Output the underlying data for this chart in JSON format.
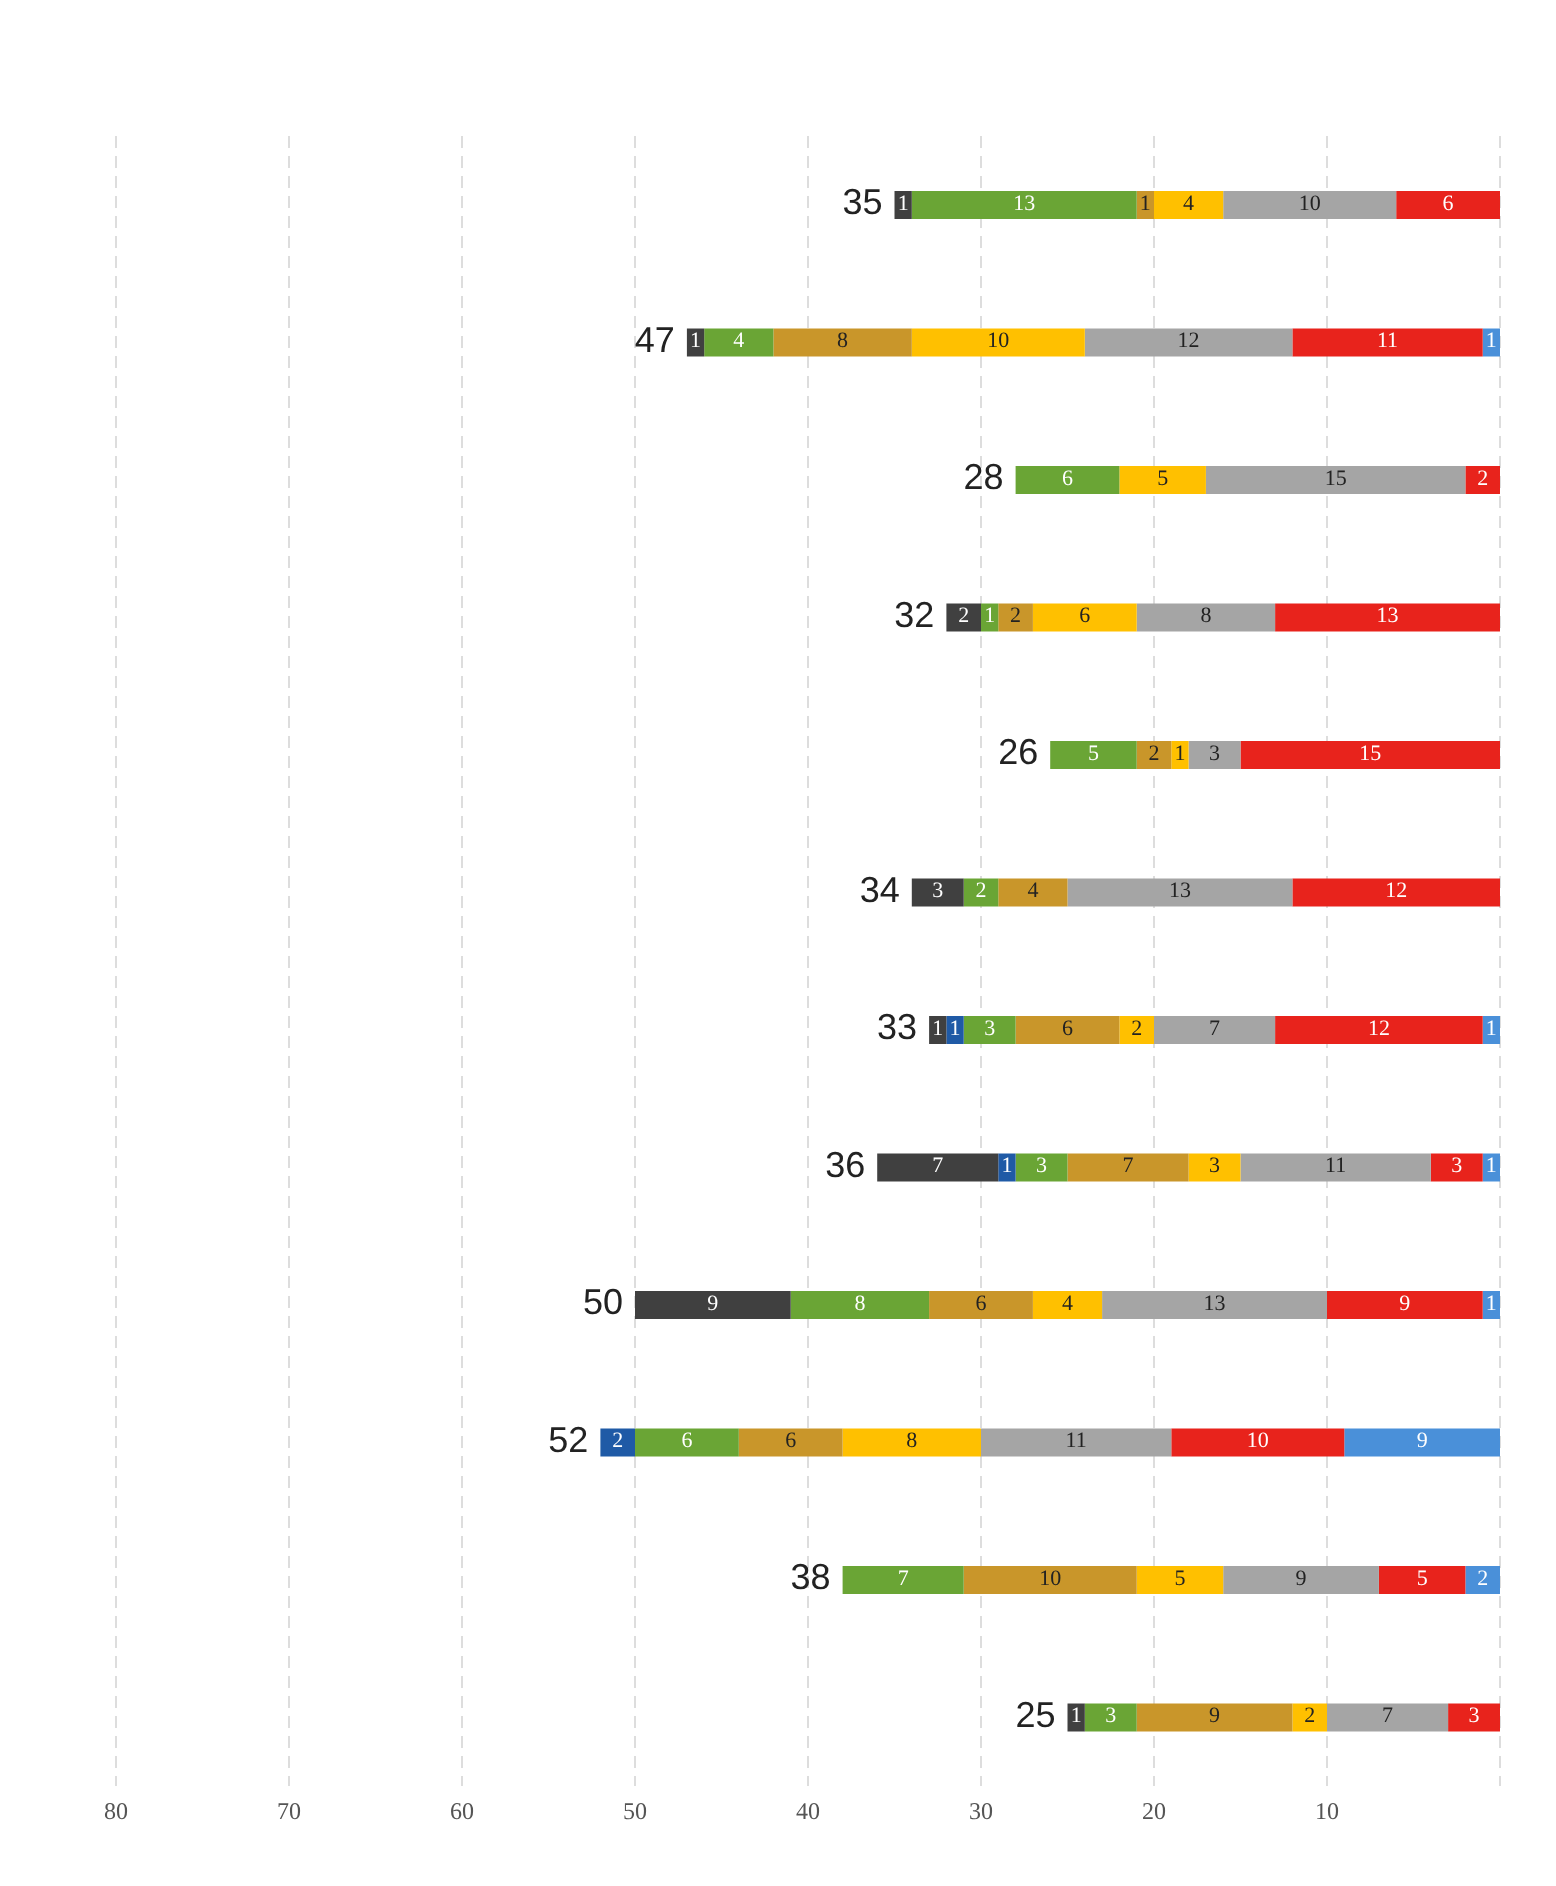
{
  "chart_data": {
    "type": "bar",
    "orientation": "horizontal",
    "stacked": true,
    "grid": "x",
    "legend": false,
    "categories": [
      null,
      null,
      null,
      null,
      null,
      null,
      null,
      null,
      null,
      null,
      null,
      null
    ],
    "xlim": [
      80,
      0
    ],
    "xticks": [
      10,
      20,
      30,
      40,
      50,
      60,
      70,
      80
    ],
    "totals": [
      "35",
      "47",
      "28",
      "32",
      "26",
      "34",
      "33",
      "36",
      "50",
      "52",
      "38",
      "25"
    ],
    "series": [
      {
        "color": "#4a90d9",
        "values": [
          null,
          1,
          null,
          null,
          null,
          null,
          1,
          1,
          1,
          9,
          2,
          null
        ],
        "value_labels": [
          null,
          "1",
          null,
          null,
          null,
          null,
          "1",
          "1",
          "1",
          "9",
          "2",
          null
        ]
      },
      {
        "color": "#e8231c",
        "values": [
          6,
          11,
          2,
          13,
          15,
          12,
          12,
          3,
          9,
          10,
          5,
          3
        ],
        "value_labels": [
          "6",
          "11",
          "2",
          "13",
          "15",
          "12",
          "12",
          "3",
          "9",
          "10",
          "5",
          "3"
        ]
      },
      {
        "color": "#a5a5a5",
        "values": [
          10,
          12,
          15,
          8,
          3,
          13,
          7,
          11,
          13,
          11,
          9,
          7
        ],
        "value_labels": [
          "10",
          "12",
          "15",
          "8",
          "3",
          "13",
          "7",
          "11",
          "13",
          "11",
          "9",
          "7"
        ]
      },
      {
        "color": "#ffc000",
        "values": [
          4,
          10,
          5,
          6,
          1,
          0,
          2,
          3,
          4,
          8,
          5,
          2
        ],
        "value_labels": [
          "4",
          "10",
          "5",
          "6",
          "1",
          null,
          "2",
          "3",
          "4",
          "8",
          "5",
          "2"
        ]
      },
      {
        "color": "#c9962a",
        "values": [
          1,
          8,
          0,
          2,
          2,
          4,
          6,
          7,
          6,
          6,
          10,
          9
        ],
        "value_labels": [
          "1",
          "8",
          null,
          "2",
          "2",
          "4",
          "6",
          "7",
          "6",
          "6",
          "10",
          "9"
        ]
      },
      {
        "color": "#6aa535",
        "values": [
          13,
          4,
          6,
          1,
          5,
          2,
          3,
          3,
          8,
          6,
          7,
          3
        ],
        "value_labels": [
          "13",
          "4",
          "6",
          "1",
          "5",
          "2",
          "3",
          "3",
          "8",
          "6",
          "7",
          "3"
        ]
      },
      {
        "color": "#1f5aa6",
        "values": [
          null,
          0,
          0,
          0,
          0,
          0,
          1,
          1,
          0,
          2,
          0,
          null
        ],
        "value_labels": [
          null,
          null,
          null,
          null,
          null,
          null,
          "1",
          "1",
          null,
          "2",
          null,
          null
        ]
      },
      {
        "color": "#404040",
        "values": [
          1,
          1,
          null,
          2,
          null,
          3,
          1,
          7,
          9,
          null,
          null,
          1
        ],
        "value_labels": [
          "1",
          "1",
          null,
          "2",
          null,
          "3",
          "1",
          "7",
          "9",
          null,
          null,
          "1"
        ]
      }
    ]
  }
}
